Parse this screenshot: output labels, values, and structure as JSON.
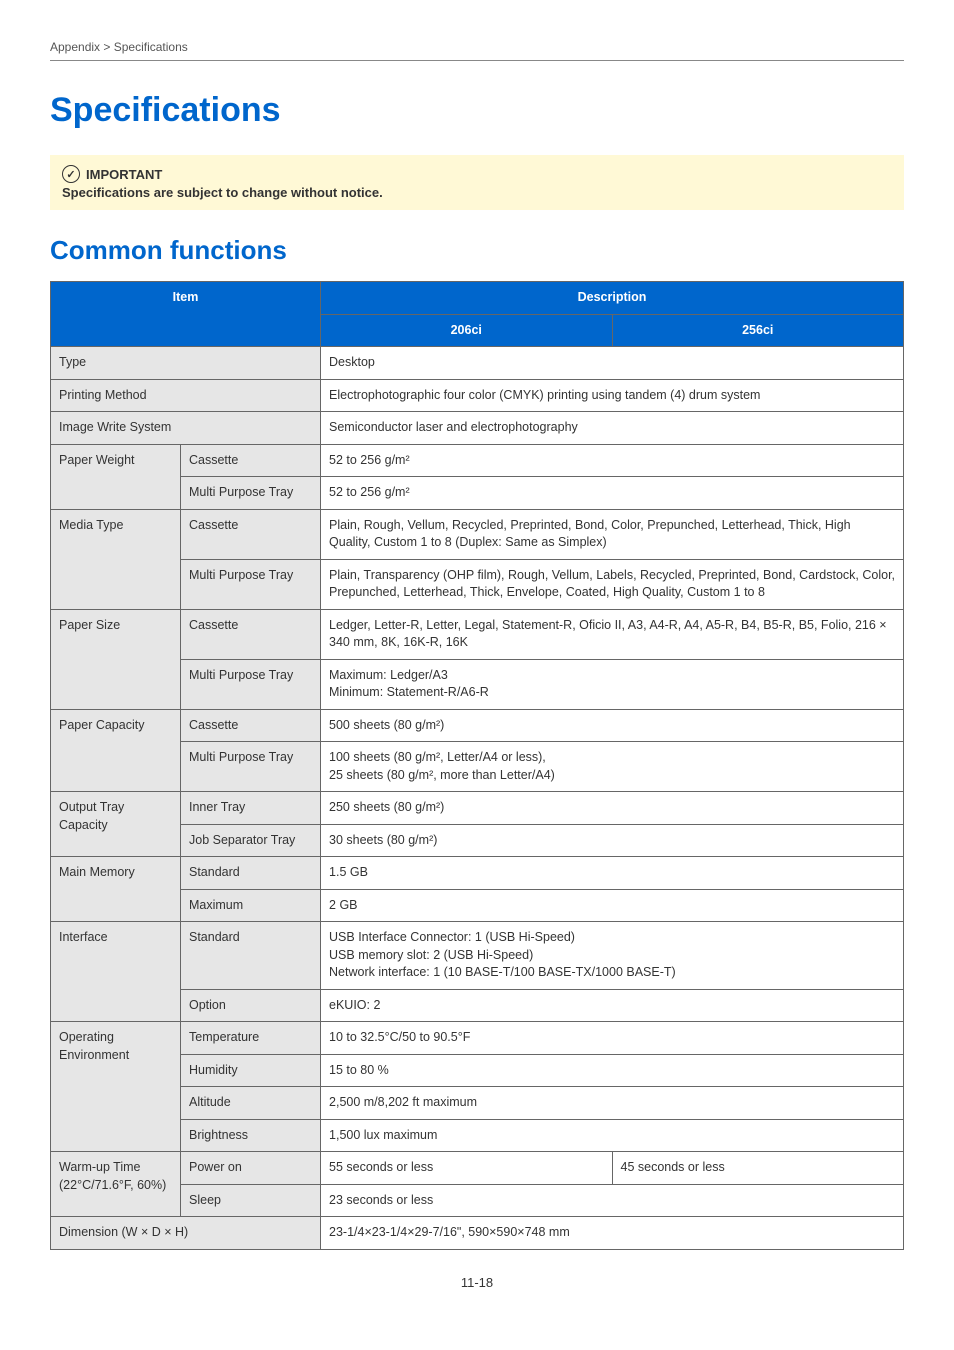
{
  "breadcrumb": "Appendix > Specifications",
  "title": "Specifications",
  "importantLabel": "IMPORTANT",
  "importantText": "Specifications are subject to change without notice.",
  "sectionTitle": "Common functions",
  "headers": {
    "item": "Item",
    "description": "Description",
    "model1": "206ci",
    "model2": "256ci"
  },
  "rows": {
    "type": {
      "label": "Type",
      "value": "Desktop"
    },
    "printingMethod": {
      "label": "Printing Method",
      "value": "Electrophotographic four color (CMYK) printing using tandem (4) drum system"
    },
    "imageWrite": {
      "label": "Image Write System",
      "value": "Semiconductor laser and electrophotography"
    },
    "paperWeight": {
      "label": "Paper Weight",
      "cassette": {
        "sub": "Cassette",
        "val": "52 to 256 g/m²"
      },
      "mp": {
        "sub": "Multi Purpose Tray",
        "val": "52 to 256 g/m²"
      }
    },
    "mediaType": {
      "label": "Media Type",
      "cassette": {
        "sub": "Cassette",
        "val": "Plain, Rough, Vellum, Recycled, Preprinted, Bond, Color, Prepunched, Letterhead, Thick, High Quality, Custom 1 to 8 (Duplex: Same as Simplex)"
      },
      "mp": {
        "sub": "Multi Purpose Tray",
        "val": "Plain, Transparency (OHP film), Rough, Vellum, Labels, Recycled, Preprinted, Bond, Cardstock, Color, Prepunched, Letterhead, Thick, Envelope, Coated, High Quality, Custom 1 to 8"
      }
    },
    "paperSize": {
      "label": "Paper Size",
      "cassette": {
        "sub": "Cassette",
        "val": "Ledger, Letter-R, Letter, Legal, Statement-R, Oficio II, A3, A4-R, A4, A5-R, B4, B5-R, B5, Folio, 216 × 340 mm, 8K, 16K-R, 16K"
      },
      "mp": {
        "sub": "Multi Purpose Tray",
        "line1": "Maximum: Ledger/A3",
        "line2": "Minimum: Statement-R/A6-R"
      }
    },
    "paperCapacity": {
      "label": "Paper Capacity",
      "cassette": {
        "sub": "Cassette",
        "val": "500 sheets (80 g/m²)"
      },
      "mp": {
        "sub": "Multi Purpose Tray",
        "line1": "100 sheets (80 g/m², Letter/A4 or less),",
        "line2": "25 sheets (80 g/m², more than Letter/A4)"
      }
    },
    "outputTray": {
      "label": "Output Tray Capacity",
      "inner": {
        "sub": "Inner Tray",
        "val": "250 sheets (80 g/m²)"
      },
      "jobsep": {
        "sub": "Job Separator Tray",
        "val": "30 sheets (80 g/m²)"
      }
    },
    "mainMemory": {
      "label": "Main Memory",
      "std": {
        "sub": "Standard",
        "val": "1.5 GB"
      },
      "max": {
        "sub": "Maximum",
        "val": "2 GB"
      }
    },
    "interface": {
      "label": "Interface",
      "std": {
        "sub": "Standard",
        "line1": "USB Interface Connector: 1 (USB Hi-Speed)",
        "line2": "USB memory slot: 2 (USB Hi-Speed)",
        "line3": "Network interface: 1 (10 BASE-T/100 BASE-TX/1000 BASE-T)"
      },
      "opt": {
        "sub": "Option",
        "val": "eKUIO: 2"
      }
    },
    "operating": {
      "label": "Operating Environment",
      "temp": {
        "sub": "Temperature",
        "val": "10 to 32.5°C/50 to 90.5°F"
      },
      "hum": {
        "sub": "Humidity",
        "val": "15 to 80 %"
      },
      "alt": {
        "sub": "Altitude",
        "val": "2,500 m/8,202 ft maximum"
      },
      "bright": {
        "sub": "Brightness",
        "val": "1,500 lux maximum"
      }
    },
    "warmup": {
      "label": "Warm-up Time (22°C/71.6°F, 60%)",
      "power": {
        "sub": "Power on",
        "v1": "55 seconds or less",
        "v2": "45 seconds or less"
      },
      "sleep": {
        "sub": "Sleep",
        "val": "23 seconds or less"
      }
    },
    "dimension": {
      "label": "Dimension (W × D × H)",
      "value": "23-1/4×23-1/4×29-7/16\", 590×590×748 mm"
    }
  },
  "pageNum": "11-18"
}
